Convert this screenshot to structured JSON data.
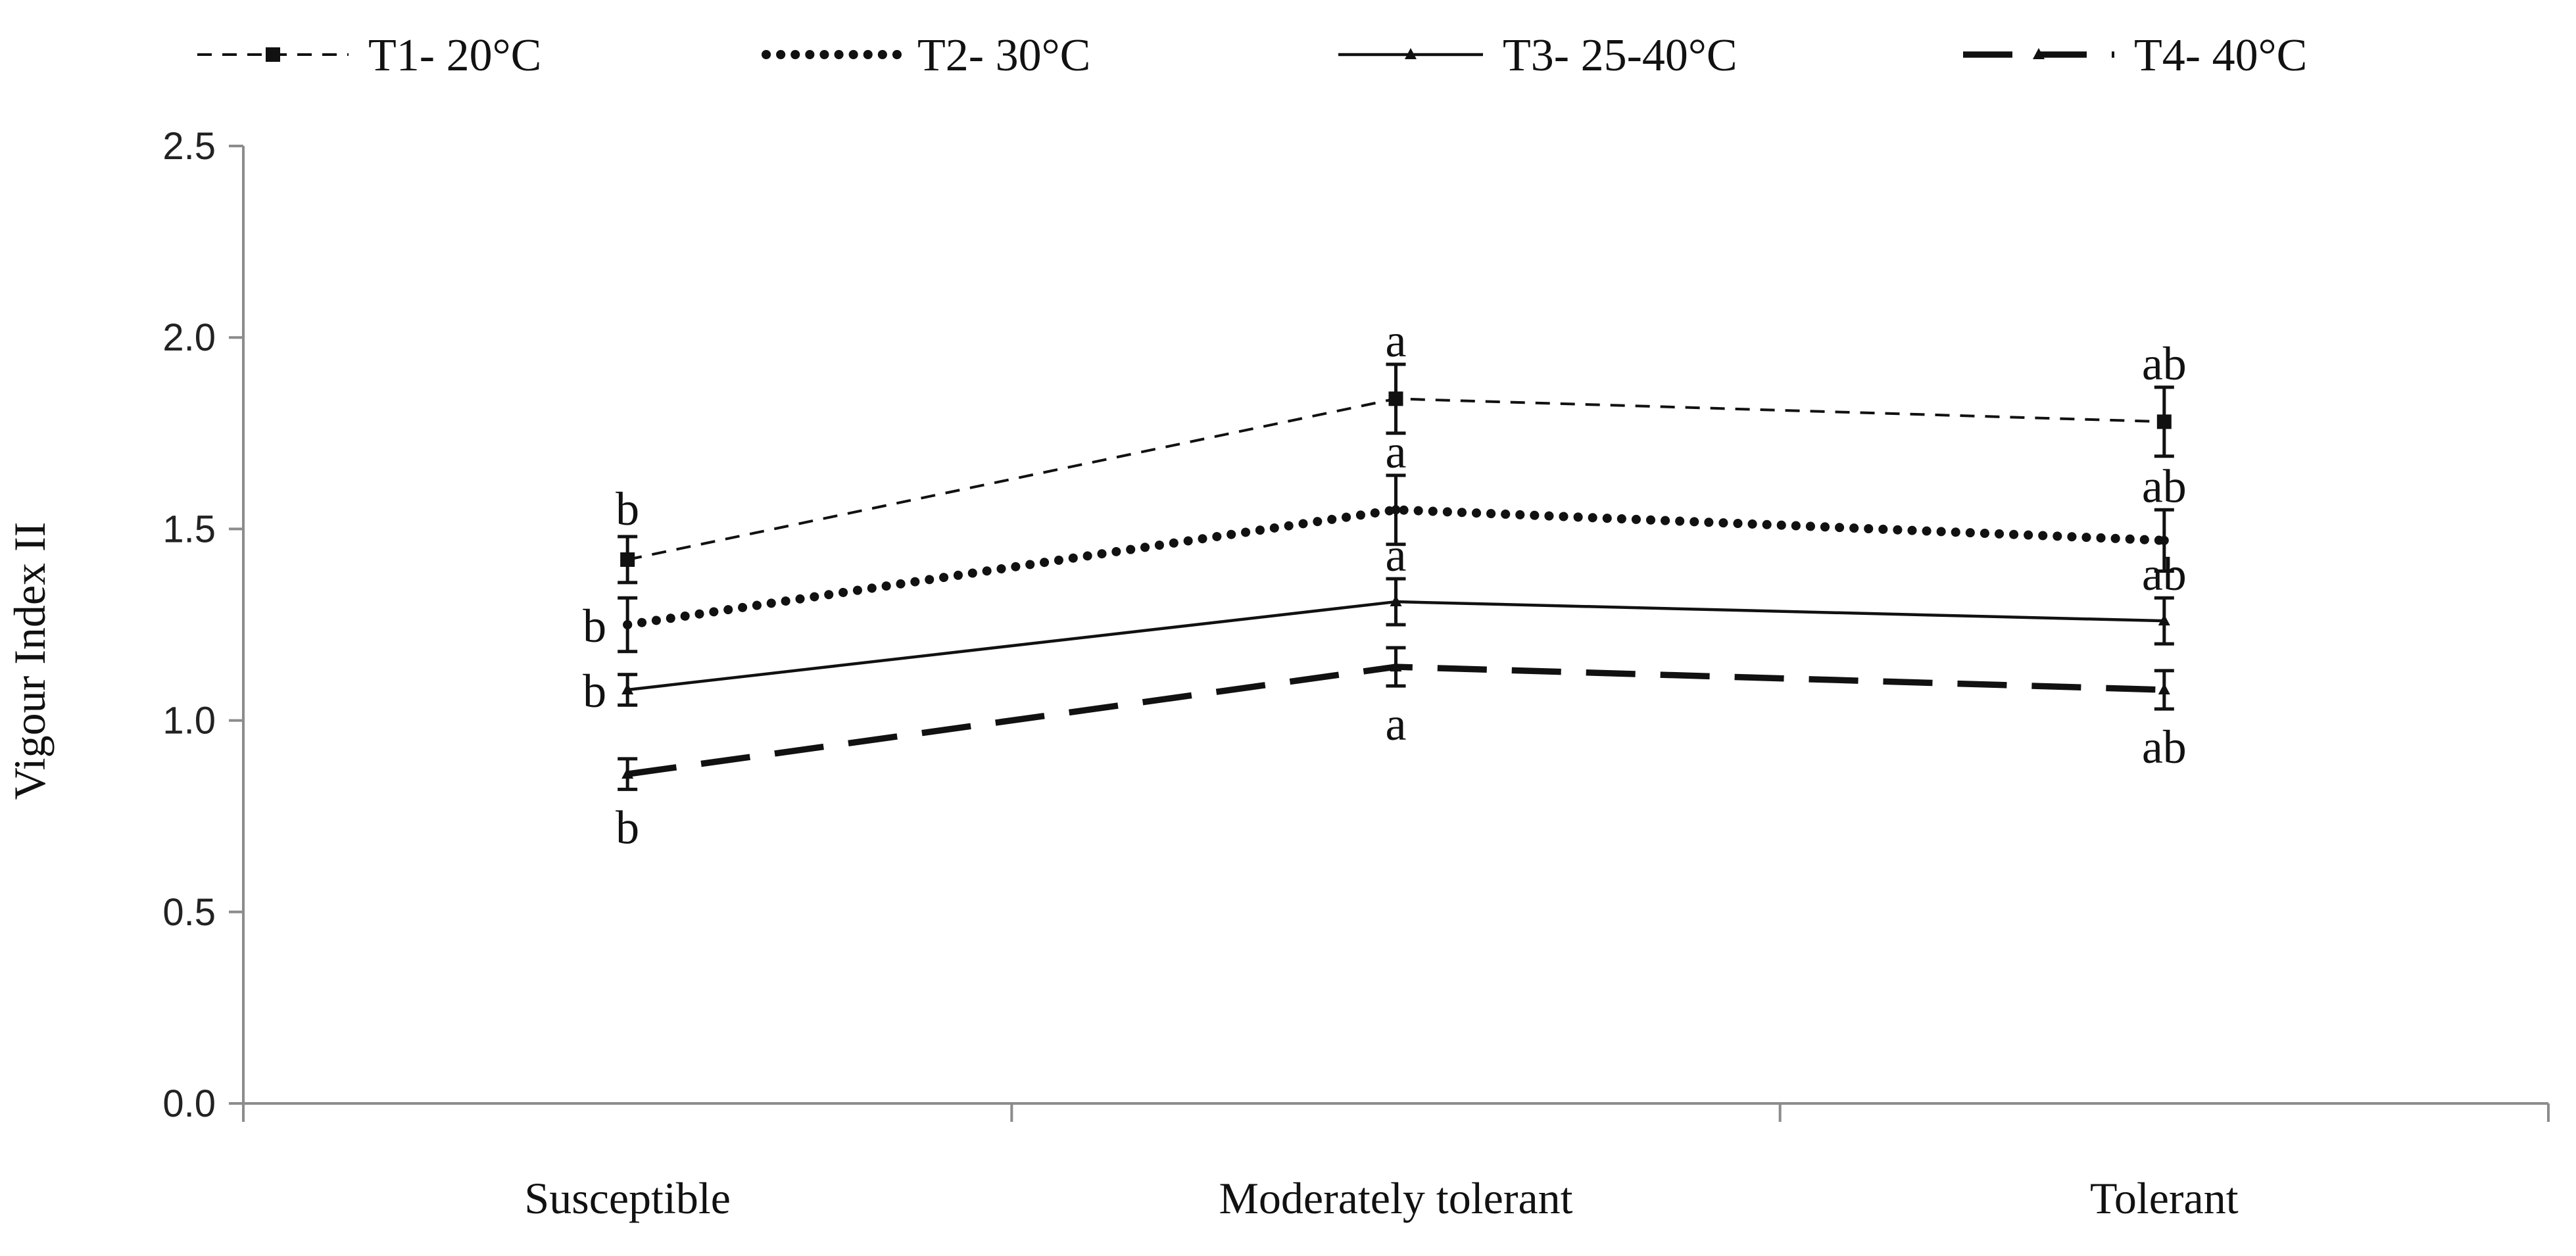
{
  "chart_data": {
    "type": "line",
    "title": "",
    "xlabel": "",
    "ylabel": "Vigour Index II",
    "categories": [
      "Susceptible",
      "Moderately tolerant",
      "Tolerant"
    ],
    "ylim": [
      0.0,
      2.5
    ],
    "yticks": [
      "0.0",
      "0.5",
      "1.0",
      "1.5",
      "2.0",
      "2.5"
    ],
    "grid": false,
    "legend_position": "top",
    "series": [
      {
        "name": "T1- 20°C",
        "style": "dashed-thin",
        "marker": "square",
        "color": "#111111",
        "values": [
          1.42,
          1.84,
          1.78
        ],
        "errors": [
          0.06,
          0.09,
          0.09
        ],
        "letters": [
          "b",
          "a",
          "ab"
        ]
      },
      {
        "name": "T2- 30°C",
        "style": "dotted",
        "marker": "none",
        "color": "#111111",
        "values": [
          1.25,
          1.55,
          1.47
        ],
        "errors": [
          0.07,
          0.09,
          0.08
        ],
        "letters": [
          "b",
          "a",
          "ab"
        ]
      },
      {
        "name": "T3- 25-40°C",
        "style": "solid",
        "marker": "triangle",
        "color": "#111111",
        "values": [
          1.08,
          1.31,
          1.26
        ],
        "errors": [
          0.04,
          0.06,
          0.06
        ],
        "letters": [
          "b",
          "a",
          "ab"
        ]
      },
      {
        "name": "T4- 40°C",
        "style": "long-dash",
        "marker": "triangle",
        "color": "#111111",
        "values": [
          0.86,
          1.14,
          1.08
        ],
        "errors": [
          0.04,
          0.05,
          0.05
        ],
        "letters": [
          "b",
          "a",
          "ab"
        ]
      }
    ]
  }
}
